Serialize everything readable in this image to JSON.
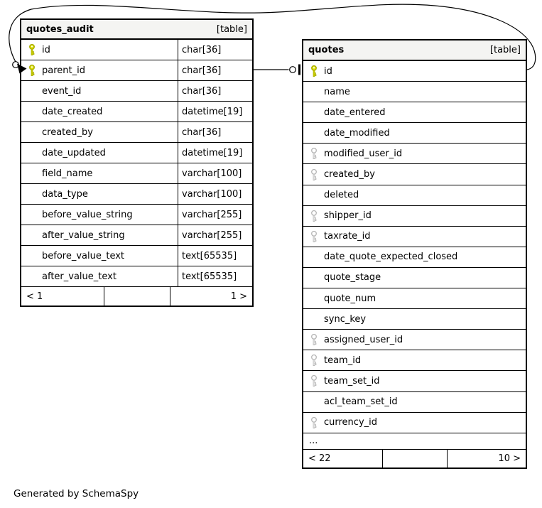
{
  "diagram": {
    "generated_by": "Generated by SchemaSpy"
  },
  "colors": {
    "primary_key_fill": "#dde000",
    "primary_key_stroke": "#a8ac00",
    "foreign_key_fill": "#ffffff",
    "foreign_key_stroke": "#b5b5b5",
    "header_bg": "#f4f4f2",
    "border": "#000000",
    "edge": "#000000"
  },
  "tables": [
    {
      "name": "quotes_audit",
      "badge": "[table]",
      "show_types": true,
      "columns": [
        {
          "name": "id",
          "type": "char[36]",
          "key": "primary"
        },
        {
          "name": "parent_id",
          "type": "char[36]",
          "key": "primary"
        },
        {
          "name": "event_id",
          "type": "char[36]",
          "key": "none"
        },
        {
          "name": "date_created",
          "type": "datetime[19]",
          "key": "none"
        },
        {
          "name": "created_by",
          "type": "char[36]",
          "key": "none"
        },
        {
          "name": "date_updated",
          "type": "datetime[19]",
          "key": "none"
        },
        {
          "name": "field_name",
          "type": "varchar[100]",
          "key": "none"
        },
        {
          "name": "data_type",
          "type": "varchar[100]",
          "key": "none"
        },
        {
          "name": "before_value_string",
          "type": "varchar[255]",
          "key": "none"
        },
        {
          "name": "after_value_string",
          "type": "varchar[255]",
          "key": "none"
        },
        {
          "name": "before_value_text",
          "type": "text[65535]",
          "key": "none"
        },
        {
          "name": "after_value_text",
          "type": "text[65535]",
          "key": "none"
        }
      ],
      "ellipsis": "",
      "footer": {
        "left": "< 1",
        "middle": "",
        "right": "1 >"
      }
    },
    {
      "name": "quotes",
      "badge": "[table]",
      "show_types": false,
      "columns": [
        {
          "name": "id",
          "key": "primary"
        },
        {
          "name": "name",
          "key": "none"
        },
        {
          "name": "date_entered",
          "key": "none"
        },
        {
          "name": "date_modified",
          "key": "none"
        },
        {
          "name": "modified_user_id",
          "key": "foreign"
        },
        {
          "name": "created_by",
          "key": "foreign"
        },
        {
          "name": "deleted",
          "key": "none"
        },
        {
          "name": "shipper_id",
          "key": "foreign"
        },
        {
          "name": "taxrate_id",
          "key": "foreign"
        },
        {
          "name": "date_quote_expected_closed",
          "key": "none"
        },
        {
          "name": "quote_stage",
          "key": "none"
        },
        {
          "name": "quote_num",
          "key": "none"
        },
        {
          "name": "sync_key",
          "key": "none"
        },
        {
          "name": "assigned_user_id",
          "key": "foreign"
        },
        {
          "name": "team_id",
          "key": "foreign"
        },
        {
          "name": "team_set_id",
          "key": "foreign"
        },
        {
          "name": "acl_team_set_id",
          "key": "none"
        },
        {
          "name": "currency_id",
          "key": "foreign"
        }
      ],
      "ellipsis": "...",
      "footer": {
        "left": "< 22",
        "middle": "",
        "right": "10 >"
      }
    }
  ],
  "relationship": {
    "from_table": "quotes_audit",
    "from_column": "parent_id",
    "to_table": "quotes",
    "to_column": "id"
  }
}
